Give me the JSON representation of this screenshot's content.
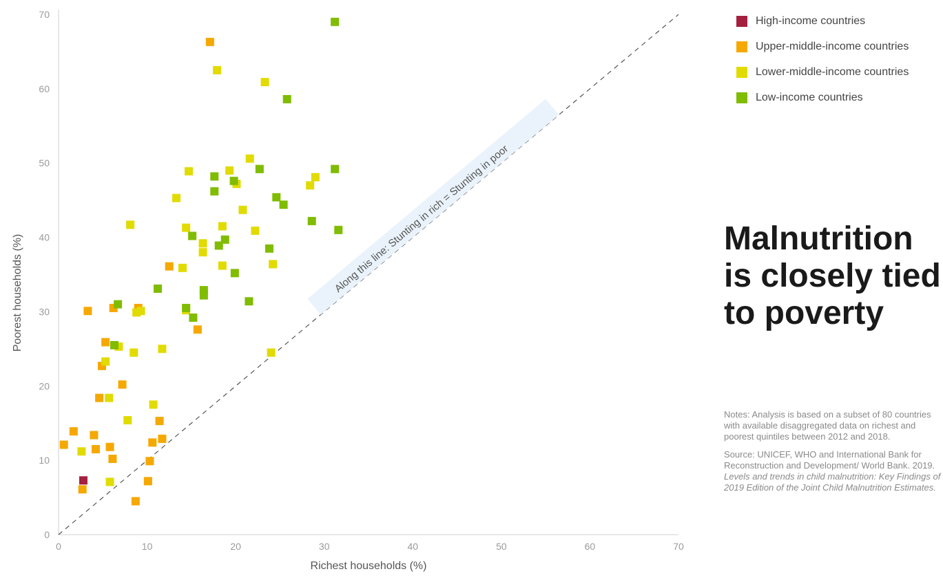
{
  "chart_data": {
    "type": "scatter",
    "xlabel": "Richest households (%)",
    "ylabel": "Poorest households (%)",
    "xlim": [
      0,
      70
    ],
    "ylim": [
      0,
      70
    ],
    "xticks": [
      "0",
      "10",
      "20",
      "30",
      "40",
      "50",
      "60",
      "70"
    ],
    "yticks": [
      "0",
      "10",
      "20",
      "30",
      "40",
      "50",
      "60",
      "70"
    ],
    "diagonal_label": "Along this line: Stunting in rich = Stunting in poor",
    "legend_position": "top-right",
    "series": [
      {
        "name": "High-income countries",
        "color": "#a3203f",
        "points": [
          [
            2.8,
            7.3
          ]
        ]
      },
      {
        "name": "Upper-middle-income countries",
        "color": "#f5a800",
        "points": [
          [
            17.1,
            66.3
          ],
          [
            0.6,
            12.1
          ],
          [
            1.7,
            13.9
          ],
          [
            2.7,
            6.1
          ],
          [
            3.3,
            30.1
          ],
          [
            4.0,
            13.4
          ],
          [
            4.2,
            11.5
          ],
          [
            4.6,
            18.4
          ],
          [
            4.9,
            22.7
          ],
          [
            5.3,
            25.9
          ],
          [
            5.8,
            11.8
          ],
          [
            6.1,
            10.2
          ],
          [
            6.2,
            30.5
          ],
          [
            7.2,
            20.2
          ],
          [
            8.7,
            4.5
          ],
          [
            9.0,
            30.5
          ],
          [
            10.1,
            7.2
          ],
          [
            10.3,
            9.9
          ],
          [
            10.6,
            12.4
          ],
          [
            11.4,
            15.3
          ],
          [
            11.7,
            12.9
          ],
          [
            12.5,
            36.1
          ],
          [
            15.7,
            27.6
          ]
        ]
      },
      {
        "name": "Lower-middle-income countries",
        "color": "#e1db00",
        "points": [
          [
            2.6,
            11.2
          ],
          [
            5.3,
            23.3
          ],
          [
            5.7,
            18.4
          ],
          [
            5.8,
            7.1
          ],
          [
            6.8,
            25.3
          ],
          [
            7.8,
            15.4
          ],
          [
            8.1,
            41.7
          ],
          [
            8.5,
            24.5
          ],
          [
            8.8,
            29.9
          ],
          [
            9.3,
            30.1
          ],
          [
            10.7,
            17.5
          ],
          [
            11.7,
            25.0
          ],
          [
            13.3,
            45.3
          ],
          [
            14.0,
            35.9
          ],
          [
            14.4,
            41.3
          ],
          [
            14.4,
            30.2
          ],
          [
            14.7,
            48.9
          ],
          [
            16.3,
            39.2
          ],
          [
            16.3,
            38.0
          ],
          [
            17.9,
            62.5
          ],
          [
            18.5,
            41.5
          ],
          [
            18.5,
            36.2
          ],
          [
            19.3,
            49.0
          ],
          [
            20.1,
            47.2
          ],
          [
            20.8,
            43.7
          ],
          [
            21.6,
            50.6
          ],
          [
            22.2,
            40.9
          ],
          [
            23.3,
            60.9
          ],
          [
            24.0,
            24.5
          ],
          [
            24.2,
            36.4
          ],
          [
            28.4,
            47.0
          ],
          [
            29.0,
            48.1
          ]
        ]
      },
      {
        "name": "Low-income countries",
        "color": "#80bc00",
        "points": [
          [
            31.2,
            69.0
          ],
          [
            6.3,
            25.5
          ],
          [
            6.7,
            31.0
          ],
          [
            11.2,
            33.1
          ],
          [
            14.4,
            30.5
          ],
          [
            15.1,
            40.2
          ],
          [
            15.2,
            29.2
          ],
          [
            16.4,
            32.9
          ],
          [
            16.4,
            32.2
          ],
          [
            17.6,
            48.2
          ],
          [
            17.6,
            46.2
          ],
          [
            18.1,
            38.9
          ],
          [
            18.8,
            39.7
          ],
          [
            19.8,
            47.6
          ],
          [
            19.9,
            35.2
          ],
          [
            21.5,
            31.4
          ],
          [
            22.7,
            49.2
          ],
          [
            23.8,
            38.5
          ],
          [
            24.6,
            45.4
          ],
          [
            25.4,
            44.4
          ],
          [
            25.8,
            58.6
          ],
          [
            28.6,
            42.2
          ],
          [
            31.2,
            49.2
          ],
          [
            31.6,
            41.0
          ]
        ]
      }
    ]
  },
  "headline": {
    "line1": "Malnutrition",
    "line2": "is closely tied",
    "line3": "to poverty"
  },
  "notes": {
    "notes_text": "Notes: Analysis is based on a subset of 80 countries with available disaggregated data on richest and poorest quintiles between 2012 and 2018.",
    "source_prefix": "Source: UNICEF, WHO and International Bank for Reconstruction and Development/ World Bank. 2019.",
    "source_title": "Levels and trends in child malnutrition: Key Findings of 2019 Edition of the Joint Child Malnutrition Estimates."
  }
}
